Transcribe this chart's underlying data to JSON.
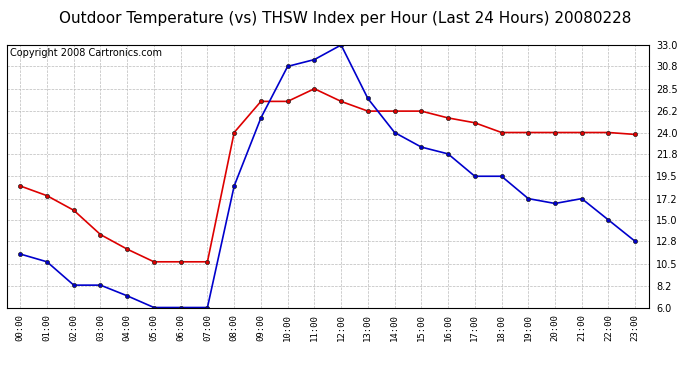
{
  "title": "Outdoor Temperature (vs) THSW Index per Hour (Last 24 Hours) 20080228",
  "copyright": "Copyright 2008 Cartronics.com",
  "hours": [
    "00:00",
    "01:00",
    "02:00",
    "03:00",
    "04:00",
    "05:00",
    "06:00",
    "07:00",
    "08:00",
    "09:00",
    "10:00",
    "11:00",
    "12:00",
    "13:00",
    "14:00",
    "15:00",
    "16:00",
    "17:00",
    "18:00",
    "19:00",
    "20:00",
    "21:00",
    "22:00",
    "23:00"
  ],
  "temp_red": [
    18.5,
    17.5,
    16.0,
    13.5,
    12.0,
    10.7,
    10.7,
    10.7,
    24.0,
    27.2,
    27.2,
    28.5,
    27.2,
    26.2,
    26.2,
    26.2,
    25.5,
    25.0,
    24.0,
    24.0,
    24.0,
    24.0,
    24.0,
    23.8
  ],
  "thsw_blue": [
    11.5,
    10.7,
    8.3,
    8.3,
    7.2,
    6.0,
    6.0,
    6.0,
    18.5,
    25.5,
    30.8,
    31.5,
    33.0,
    27.5,
    24.0,
    22.5,
    21.8,
    19.5,
    19.5,
    17.2,
    16.7,
    17.2,
    15.0,
    12.8
  ],
  "red_color": "#dd0000",
  "blue_color": "#0000cc",
  "bg_color": "#ffffff",
  "grid_color": "#bbbbbb",
  "ylim": [
    6.0,
    33.0
  ],
  "yticks": [
    6.0,
    8.2,
    10.5,
    12.8,
    15.0,
    17.2,
    19.5,
    21.8,
    24.0,
    26.2,
    28.5,
    30.8,
    33.0
  ],
  "title_fontsize": 11,
  "copyright_fontsize": 7
}
